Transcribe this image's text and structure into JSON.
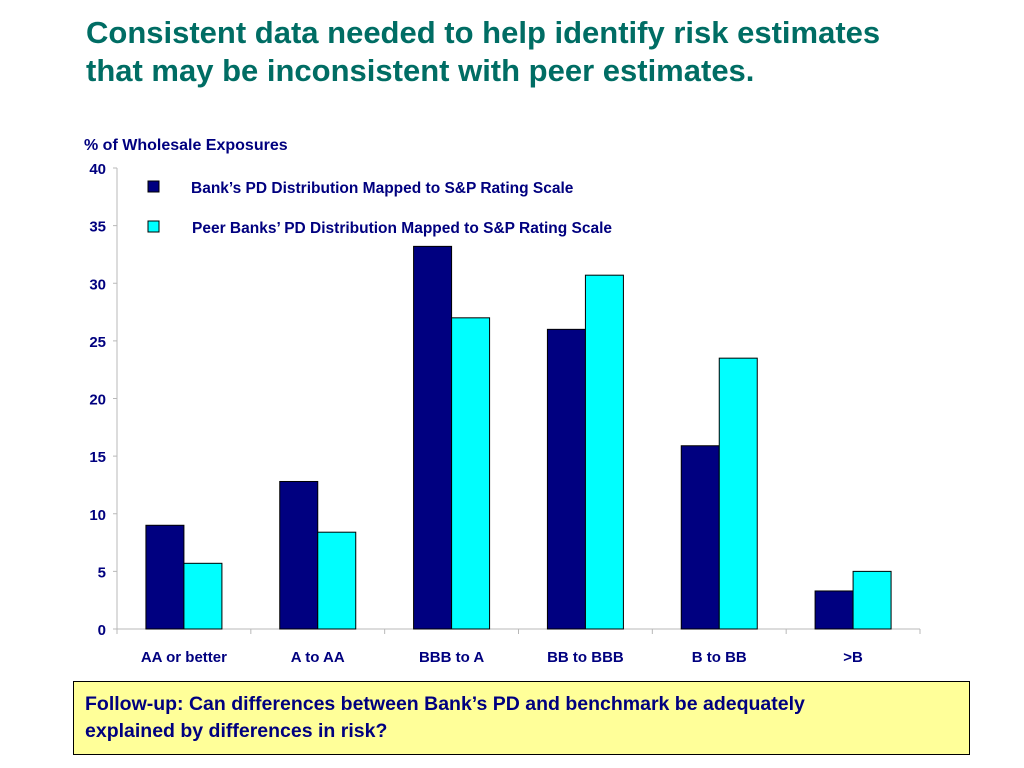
{
  "slide": {
    "title_lines": [
      "Consistent data needed to help identify risk estimates",
      "that may be inconsistent with peer estimates."
    ],
    "followup_lines": [
      "Follow-up: Can differences between Bank’s PD and benchmark be adequately",
      "explained by differences in risk?"
    ]
  },
  "colors": {
    "title": "#006d64",
    "text": "#00007f",
    "bank_series": "#000080",
    "peer_series": "#00ffff",
    "followup_background": "#ffff99"
  },
  "chart_data": {
    "type": "bar",
    "ylabel": "% of Wholesale Exposures",
    "ylim": [
      0,
      40
    ],
    "yticks": [
      0,
      5,
      10,
      15,
      20,
      25,
      30,
      35,
      40
    ],
    "categories": [
      "AA or better",
      "A to AA",
      "BBB to A",
      "BB to BBB",
      "B to BB",
      ">B"
    ],
    "series": [
      {
        "name": "Bank’s PD Distribution Mapped to S&P Rating Scale",
        "color": "#000080",
        "values": [
          9.0,
          12.8,
          33.2,
          26.0,
          15.9,
          3.3
        ]
      },
      {
        "name": "Peer Banks’ PD Distribution Mapped to S&P Rating Scale",
        "color": "#00ffff",
        "values": [
          5.7,
          8.4,
          27.0,
          30.7,
          23.5,
          5.0
        ]
      }
    ],
    "legend_position": "top-left, inside plot",
    "grid": false
  }
}
